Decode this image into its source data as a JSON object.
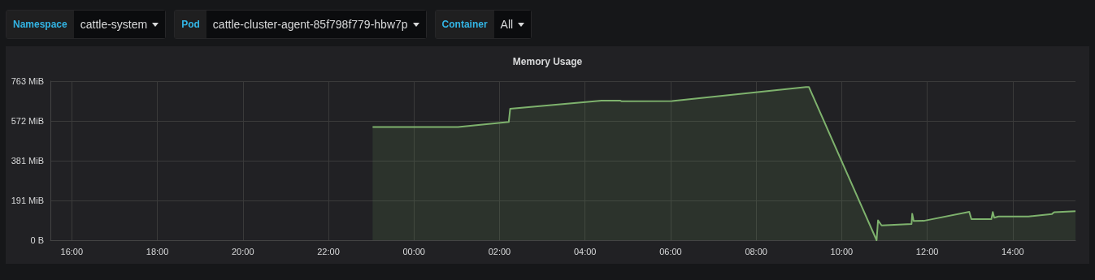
{
  "chart_data": {
    "type": "area",
    "title": "Memory Usage",
    "annotations": [
      "Namespace",
      "cattle-system",
      "Pod",
      "cattle-cluster-agent-85f798f779-hbw7p",
      "Container",
      "All"
    ],
    "series": [
      {
        "color": "#7eb26d",
        "x": [
          "--01-01T23:02",
          "--01-02T01:02",
          "--01-02T02:13",
          "--01-02T02:15",
          "--01-02T04:23",
          "--01-02T04:49",
          "--01-02T04:51",
          "--01-02T06:02",
          "--01-02T09:10",
          "--01-02T09:14",
          "--01-02T10:49",
          "--01-02T10:51",
          "--01-02T10:56",
          "--01-02T11:38",
          "--01-02T11:39",
          "--01-02T11:41",
          "--01-02T11:55",
          "--01-02T12:59",
          "--01-02T13:02",
          "--01-02T13:30",
          "--01-02T13:32",
          "--01-02T13:34",
          "--01-02T13:40",
          "--01-02T14:22",
          "--01-02T14:55",
          "--01-02T14:58",
          "--01-02T15:28"
        ],
        "values": [
          543,
          543,
          567,
          631,
          670,
          670,
          667,
          668,
          735,
          735,
          0,
          95,
          71,
          78,
          127,
          92,
          93,
          136,
          101,
          101,
          135,
          108,
          114,
          114,
          126,
          134,
          139
        ]
      }
    ],
    "xlim": [
      "--01-01T15:30",
      "--01-02T15:28"
    ],
    "xticks": [
      {
        "value": "--01-01T16:00",
        "label": "16:00"
      },
      {
        "value": "--01-01T18:00",
        "label": "18:00"
      },
      {
        "value": "--01-01T20:00",
        "label": "20:00"
      },
      {
        "value": "--01-01T22:00",
        "label": "22:00"
      },
      {
        "value": "--01-02T00:00",
        "label": "00:00"
      },
      {
        "value": "--01-02T02:00",
        "label": "02:00"
      },
      {
        "value": "--01-02T04:00",
        "label": "04:00"
      },
      {
        "value": "--01-02T06:00",
        "label": "06:00"
      },
      {
        "value": "--01-02T08:00",
        "label": "08:00"
      },
      {
        "value": "--01-02T10:00",
        "label": "10:00"
      },
      {
        "value": "--01-02T12:00",
        "label": "12:00"
      },
      {
        "value": "--01-02T14:00",
        "label": "14:00"
      }
    ],
    "ylim": [
      0,
      763
    ],
    "yticks": [
      {
        "value": 0,
        "label": "0 B"
      },
      {
        "value": 190.75,
        "label": "191 MiB"
      },
      {
        "value": 381.5,
        "label": "381 MiB"
      },
      {
        "value": 572.25,
        "label": "572 MiB"
      },
      {
        "value": 763,
        "label": "763 MiB"
      }
    ],
    "grid": true,
    "marker": "none",
    "line_style": "solid"
  }
}
